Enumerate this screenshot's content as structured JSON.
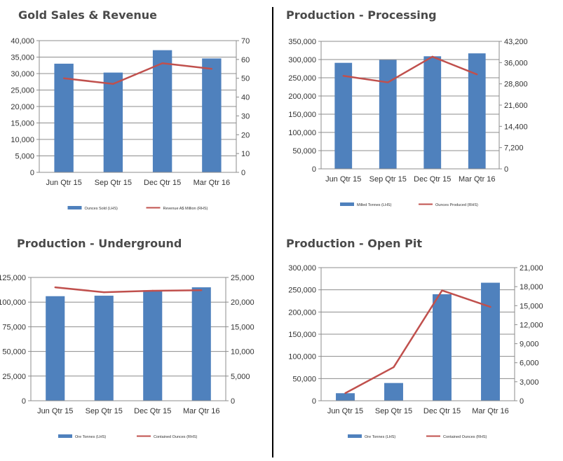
{
  "chart_data": [
    {
      "type": "bar",
      "title": "Gold Sales & Revenue",
      "categories": [
        "Jun Qtr 15",
        "Sep Qtr 15",
        "Dec Qtr 15",
        "Mar Qtr 16"
      ],
      "series": [
        {
          "name": "Ounces Sold (LHS)",
          "type": "bar",
          "axis": "left",
          "values": [
            33000,
            30300,
            37100,
            34600
          ],
          "color": "#4f81bd"
        },
        {
          "name": "Revenue A$ Million (RHS)",
          "type": "line",
          "axis": "right",
          "values": [
            50,
            47,
            58,
            55
          ],
          "color": "#c0504d"
        }
      ],
      "y_left": {
        "min": 0,
        "max": 40000,
        "ticks": [
          "0",
          "5,000",
          "10,000",
          "15,000",
          "20,000",
          "25,000",
          "30,000",
          "35,000",
          "40,000"
        ]
      },
      "y_right": {
        "min": 0,
        "max": 70,
        "ticks": [
          "0",
          "10",
          "20",
          "30",
          "40",
          "50",
          "60",
          "70"
        ]
      },
      "legend_position": "bottom",
      "grid": true
    },
    {
      "type": "bar",
      "title": "Production - Processing",
      "categories": [
        "Jun Qtr 15",
        "Sep Qtr 15",
        "Dec Qtr 15",
        "Mar Qtr 16"
      ],
      "series": [
        {
          "name": "Milled Tonnes (LHS)",
          "type": "bar",
          "axis": "left",
          "values": [
            291000,
            299000,
            309000,
            317000
          ],
          "color": "#4f81bd"
        },
        {
          "name": "Ounces Produced (RHS)",
          "type": "line",
          "axis": "right",
          "values": [
            31500,
            29300,
            38000,
            32000
          ],
          "color": "#c0504d"
        }
      ],
      "y_left": {
        "min": 0,
        "max": 350000,
        "ticks": [
          "0",
          "50,000",
          "100,000",
          "150,000",
          "200,000",
          "250,000",
          "300,000",
          "350,000"
        ]
      },
      "y_right": {
        "min": 0,
        "max": 43200,
        "ticks": [
          "0",
          "7,200",
          "14,400",
          "21,600",
          "28,800",
          "36,000",
          "43,200"
        ]
      },
      "legend_position": "bottom",
      "grid": true
    },
    {
      "type": "bar",
      "title": "Production - Underground",
      "categories": [
        "Jun Qtr 15",
        "Sep Qtr 15",
        "Dec Qtr 15",
        "Mar Qtr 16"
      ],
      "series": [
        {
          "name": "Ore Tonnes (LHS)",
          "type": "bar",
          "axis": "left",
          "values": [
            106000,
            106500,
            112000,
            115000
          ],
          "color": "#4f81bd"
        },
        {
          "name": "Contained Ounces (RHS)",
          "type": "line",
          "axis": "right",
          "values": [
            23000,
            22000,
            22300,
            22400
          ],
          "color": "#c0504d"
        }
      ],
      "y_left": {
        "min": 0,
        "max": 125000,
        "ticks": [
          "0",
          "25,000",
          "50,000",
          "75,000",
          "100,000",
          "125,000"
        ]
      },
      "y_right": {
        "min": 0,
        "max": 25000,
        "ticks": [
          "0",
          "5,000",
          "10,000",
          "15,000",
          "20,000",
          "25,000"
        ]
      },
      "legend_position": "bottom",
      "grid": true
    },
    {
      "type": "bar",
      "title": "Production - Open Pit",
      "categories": [
        "Jun Qtr 15",
        "Sep Qtr 15",
        "Dec Qtr 15",
        "Mar Qtr 16"
      ],
      "series": [
        {
          "name": "Ore Tonnes (LHS)",
          "type": "bar",
          "axis": "left",
          "values": [
            17000,
            40000,
            240000,
            266000
          ],
          "color": "#4f81bd"
        },
        {
          "name": "Contained Ounces (RHS)",
          "type": "line",
          "axis": "right",
          "values": [
            1200,
            5300,
            17400,
            14800
          ],
          "color": "#c0504d"
        }
      ],
      "y_left": {
        "min": 0,
        "max": 300000,
        "ticks": [
          "0",
          "50,000",
          "100,000",
          "150,000",
          "200,000",
          "250,000",
          "300,000"
        ]
      },
      "y_right": {
        "min": 0,
        "max": 21000,
        "ticks": [
          "0",
          "3,000",
          "6,000",
          "9,000",
          "12,000",
          "15,000",
          "18,000",
          "21,000"
        ]
      },
      "legend_position": "bottom",
      "grid": true
    }
  ]
}
